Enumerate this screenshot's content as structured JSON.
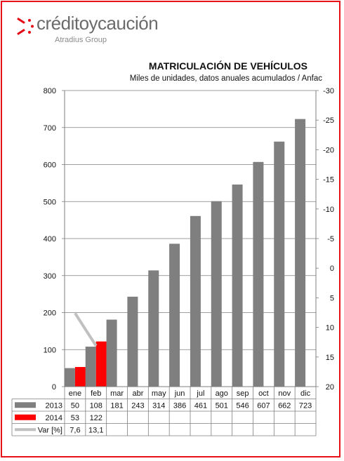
{
  "brand": {
    "name": "créditoycaución",
    "tagline": "Atradius Group",
    "colors": {
      "red": "#e30613",
      "gray": "#6b6b6b"
    }
  },
  "chart_data": {
    "type": "bar",
    "title": "MATRICULACIÓN DE VEHÍCULOS",
    "subtitle": "Miles de unidades, datos anuales acumulados / Anfac",
    "categories": [
      "ene",
      "feb",
      "mar",
      "abr",
      "may",
      "jun",
      "jul",
      "ago",
      "sep",
      "oct",
      "nov",
      "dic"
    ],
    "ylim": [
      0,
      800
    ],
    "yticks": [
      "0",
      "100",
      "200",
      "300",
      "400",
      "500",
      "600",
      "700",
      "800"
    ],
    "y2lim": [
      20,
      -30
    ],
    "y2ticks": [
      "20",
      "15",
      "10",
      "5",
      "0",
      "-5",
      "-10",
      "-15",
      "-20",
      "-25",
      "-30"
    ],
    "y2_inverted": true,
    "grid": true,
    "legend": "data-table",
    "series": [
      {
        "name": "2013",
        "kind": "bar",
        "axis": "left",
        "color": "#7f7f7f",
        "values": [
          50,
          108,
          181,
          243,
          314,
          386,
          461,
          501,
          546,
          607,
          662,
          723
        ],
        "labels": [
          "50",
          "108",
          "181",
          "243",
          "314",
          "386",
          "461",
          "501",
          "546",
          "607",
          "662",
          "723"
        ]
      },
      {
        "name": "2014",
        "kind": "bar",
        "axis": "left",
        "color": "#ff0000",
        "values": [
          53,
          122,
          null,
          null,
          null,
          null,
          null,
          null,
          null,
          null,
          null,
          null
        ],
        "labels": [
          "53",
          "122",
          "",
          "",
          "",
          "",
          "",
          "",
          "",
          "",
          "",
          ""
        ]
      },
      {
        "name": "Var [%]",
        "kind": "line",
        "axis": "right",
        "color": "#c0c0c0",
        "values": [
          7.6,
          13.1,
          null,
          null,
          null,
          null,
          null,
          null,
          null,
          null,
          null,
          null
        ],
        "labels": [
          "7,6",
          "13,1",
          "",
          "",
          "",
          "",
          "",
          "",
          "",
          "",
          "",
          ""
        ]
      }
    ]
  }
}
